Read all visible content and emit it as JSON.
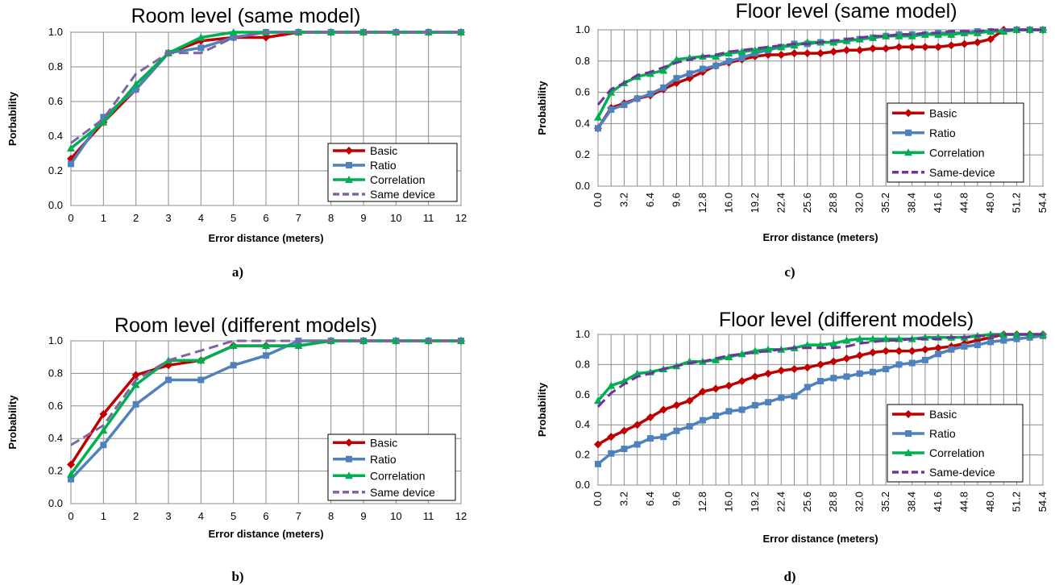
{
  "chart_data": [
    {
      "type": "line",
      "title": "Room level (same model)",
      "caption": "a)",
      "xlabel": "Error distance (meters)",
      "ylabel": "Porbability",
      "x": [
        0,
        1,
        2,
        3,
        4,
        5,
        6,
        7,
        8,
        9,
        10,
        11,
        12
      ],
      "xtick_labels": [
        "0",
        "1",
        "2",
        "3",
        "4",
        "5",
        "6",
        "7",
        "8",
        "9",
        "10",
        "11",
        "12"
      ],
      "xlim": [
        0,
        12
      ],
      "ylim": [
        0,
        1
      ],
      "yticks": [
        "0.0",
        "0.2",
        "0.4",
        "0.6",
        "0.8",
        "1.0"
      ],
      "x_tick_rotation": "horizontal",
      "grid": true,
      "legend_position": "bottom-right",
      "series": [
        {
          "name": "Basic",
          "color": "#c00000",
          "marker": "diamond",
          "dashed": false,
          "values": [
            0.27,
            0.48,
            0.67,
            0.88,
            0.95,
            0.97,
            0.97,
            1.0,
            1.0,
            1.0,
            1.0,
            1.0,
            1.0
          ]
        },
        {
          "name": "Ratio",
          "color": "#4f81bd",
          "marker": "square",
          "dashed": false,
          "values": [
            0.24,
            0.51,
            0.67,
            0.88,
            0.91,
            0.97,
            1.0,
            1.0,
            1.0,
            1.0,
            1.0,
            1.0,
            1.0
          ]
        },
        {
          "name": "Correlation",
          "color": "#00b050",
          "marker": "triangle",
          "dashed": false,
          "values": [
            0.33,
            0.48,
            0.7,
            0.88,
            0.97,
            1.0,
            1.0,
            1.0,
            1.0,
            1.0,
            1.0,
            1.0,
            1.0
          ]
        },
        {
          "name": "Same device",
          "color": "#8064a2",
          "marker": "none",
          "dashed": true,
          "values": [
            0.36,
            0.5,
            0.76,
            0.88,
            0.88,
            0.97,
            1.0,
            1.0,
            1.0,
            1.0,
            1.0,
            1.0,
            1.0
          ]
        }
      ]
    },
    {
      "type": "line",
      "title": "Room level (different models)",
      "caption": "b)",
      "xlabel": "Error distance (meters)",
      "ylabel": "Probability",
      "x": [
        0,
        1,
        2,
        3,
        4,
        5,
        6,
        7,
        8,
        9,
        10,
        11,
        12
      ],
      "xtick_labels": [
        "0",
        "1",
        "2",
        "3",
        "4",
        "5",
        "6",
        "7",
        "8",
        "9",
        "10",
        "11",
        "12"
      ],
      "xlim": [
        0,
        12
      ],
      "ylim": [
        0,
        1
      ],
      "yticks": [
        "0.0",
        "0.2",
        "0.4",
        "0.6",
        "0.8",
        "1.0"
      ],
      "x_tick_rotation": "horizontal",
      "grid": true,
      "legend_position": "bottom-right",
      "series": [
        {
          "name": "Basic",
          "color": "#c00000",
          "marker": "diamond",
          "dashed": false,
          "values": [
            0.24,
            0.55,
            0.79,
            0.85,
            0.88,
            0.97,
            0.97,
            0.97,
            1.0,
            1.0,
            1.0,
            1.0,
            1.0
          ]
        },
        {
          "name": "Ratio",
          "color": "#4f81bd",
          "marker": "square",
          "dashed": false,
          "values": [
            0.15,
            0.36,
            0.61,
            0.76,
            0.76,
            0.85,
            0.91,
            1.0,
            1.0,
            1.0,
            1.0,
            1.0,
            1.0
          ]
        },
        {
          "name": "Correlation",
          "color": "#00b050",
          "marker": "triangle",
          "dashed": false,
          "values": [
            0.18,
            0.45,
            0.73,
            0.88,
            0.88,
            0.97,
            0.97,
            0.97,
            1.0,
            1.0,
            1.0,
            1.0,
            1.0
          ]
        },
        {
          "name": "Same device",
          "color": "#8064a2",
          "marker": "none",
          "dashed": true,
          "values": [
            0.36,
            0.48,
            0.76,
            0.88,
            0.94,
            1.0,
            1.0,
            1.0,
            1.0,
            1.0,
            1.0,
            1.0,
            1.0
          ]
        }
      ]
    },
    {
      "type": "line",
      "title": "Floor level (same model)",
      "caption": "c)",
      "xlabel": "Error distance (meters)",
      "ylabel": "Probability",
      "x": [
        0,
        1.6,
        3.2,
        4.8,
        6.4,
        8,
        9.6,
        11.2,
        12.8,
        14.4,
        16,
        17.6,
        19.2,
        20.8,
        22.4,
        24,
        25.6,
        27.2,
        28.8,
        30.4,
        32,
        33.6,
        35.2,
        36.8,
        38.4,
        40,
        41.6,
        43.2,
        44.8,
        46.4,
        48,
        49.6,
        51.2,
        52.8,
        54.4
      ],
      "xtick_labels": [
        "0.0",
        "3.2",
        "6.4",
        "9.6",
        "12.8",
        "16.0",
        "19.2",
        "22.4",
        "25.6",
        "28.8",
        "32.0",
        "35.2",
        "38.4",
        "41.6",
        "44.8",
        "48.0",
        "51.2",
        "54.4"
      ],
      "xlim": [
        0,
        54.4
      ],
      "ylim": [
        0,
        1
      ],
      "yticks": [
        "0.0",
        "0.2",
        "0.4",
        "0.6",
        "0.8",
        "1.0"
      ],
      "x_tick_rotation": "vertical",
      "grid": true,
      "legend_position": "bottom-right",
      "series": [
        {
          "name": "Basic",
          "color": "#c00000",
          "marker": "diamond",
          "dashed": false,
          "values": [
            0.37,
            0.5,
            0.53,
            0.56,
            0.58,
            0.62,
            0.66,
            0.69,
            0.73,
            0.77,
            0.79,
            0.81,
            0.83,
            0.84,
            0.84,
            0.85,
            0.85,
            0.85,
            0.86,
            0.87,
            0.87,
            0.88,
            0.88,
            0.89,
            0.89,
            0.89,
            0.89,
            0.9,
            0.91,
            0.92,
            0.94,
            1.0,
            1.0,
            1.0,
            1.0
          ]
        },
        {
          "name": "Ratio",
          "color": "#4f81bd",
          "marker": "square",
          "dashed": false,
          "values": [
            0.37,
            0.49,
            0.52,
            0.56,
            0.59,
            0.63,
            0.69,
            0.72,
            0.75,
            0.77,
            0.8,
            0.82,
            0.85,
            0.87,
            0.89,
            0.91,
            0.91,
            0.92,
            0.92,
            0.93,
            0.94,
            0.95,
            0.96,
            0.97,
            0.97,
            0.97,
            0.98,
            0.98,
            0.98,
            0.99,
            0.99,
            0.99,
            1.0,
            1.0,
            1.0
          ]
        },
        {
          "name": "Correlation",
          "color": "#00b050",
          "marker": "triangle",
          "dashed": false,
          "values": [
            0.44,
            0.6,
            0.66,
            0.7,
            0.72,
            0.74,
            0.81,
            0.82,
            0.83,
            0.83,
            0.85,
            0.86,
            0.87,
            0.88,
            0.89,
            0.9,
            0.92,
            0.92,
            0.92,
            0.93,
            0.94,
            0.95,
            0.96,
            0.96,
            0.96,
            0.97,
            0.97,
            0.97,
            0.98,
            0.98,
            0.99,
            0.99,
            1.0,
            1.0,
            1.0
          ]
        },
        {
          "name": "Same-device",
          "color": "#7030a0",
          "marker": "none",
          "dashed": true,
          "values": [
            0.52,
            0.62,
            0.66,
            0.71,
            0.73,
            0.76,
            0.79,
            0.81,
            0.83,
            0.84,
            0.86,
            0.87,
            0.88,
            0.89,
            0.9,
            0.91,
            0.91,
            0.92,
            0.93,
            0.94,
            0.95,
            0.96,
            0.96,
            0.97,
            0.97,
            0.98,
            0.98,
            0.99,
            0.99,
            0.99,
            1.0,
            1.0,
            1.0,
            1.0,
            1.0
          ]
        }
      ]
    },
    {
      "type": "line",
      "title": "Floor level (different models)",
      "caption": "d)",
      "xlabel": "Error distance (meters)",
      "ylabel": "Probability",
      "x": [
        0,
        1.6,
        3.2,
        4.8,
        6.4,
        8,
        9.6,
        11.2,
        12.8,
        14.4,
        16,
        17.6,
        19.2,
        20.8,
        22.4,
        24,
        25.6,
        27.2,
        28.8,
        30.4,
        32,
        33.6,
        35.2,
        36.8,
        38.4,
        40,
        41.6,
        43.2,
        44.8,
        46.4,
        48,
        49.6,
        51.2,
        52.8,
        54.4
      ],
      "xtick_labels": [
        "0.0",
        "3.2",
        "6.4",
        "9.6",
        "12.8",
        "16.0",
        "19.2",
        "22.4",
        "25.6",
        "28.8",
        "32.0",
        "35.2",
        "38.4",
        "41.6",
        "44.8",
        "48.0",
        "51.2",
        "54.4"
      ],
      "xlim": [
        0,
        54.4
      ],
      "ylim": [
        0,
        1
      ],
      "yticks": [
        "0.0",
        "0.2",
        "0.4",
        "0.6",
        "0.8",
        "1.0"
      ],
      "x_tick_rotation": "vertical",
      "grid": true,
      "legend_position": "bottom-right",
      "series": [
        {
          "name": "Basic",
          "color": "#c00000",
          "marker": "diamond",
          "dashed": false,
          "values": [
            0.27,
            0.32,
            0.36,
            0.4,
            0.45,
            0.5,
            0.53,
            0.56,
            0.62,
            0.64,
            0.66,
            0.69,
            0.72,
            0.74,
            0.76,
            0.77,
            0.78,
            0.8,
            0.82,
            0.84,
            0.86,
            0.88,
            0.89,
            0.89,
            0.89,
            0.9,
            0.91,
            0.92,
            0.94,
            0.96,
            0.98,
            1.0,
            1.0,
            1.0,
            1.0
          ]
        },
        {
          "name": "Ratio",
          "color": "#4f81bd",
          "marker": "square",
          "dashed": false,
          "values": [
            0.14,
            0.21,
            0.24,
            0.27,
            0.31,
            0.32,
            0.36,
            0.39,
            0.43,
            0.46,
            0.49,
            0.5,
            0.53,
            0.55,
            0.58,
            0.59,
            0.65,
            0.69,
            0.71,
            0.72,
            0.74,
            0.75,
            0.77,
            0.8,
            0.81,
            0.83,
            0.87,
            0.9,
            0.92,
            0.93,
            0.95,
            0.96,
            0.97,
            0.98,
            0.99
          ]
        },
        {
          "name": "Correlation",
          "color": "#00b050",
          "marker": "triangle",
          "dashed": false,
          "values": [
            0.56,
            0.66,
            0.69,
            0.74,
            0.75,
            0.77,
            0.79,
            0.82,
            0.82,
            0.83,
            0.85,
            0.87,
            0.89,
            0.9,
            0.9,
            0.91,
            0.93,
            0.93,
            0.94,
            0.96,
            0.97,
            0.97,
            0.97,
            0.97,
            0.97,
            0.98,
            0.98,
            0.98,
            0.98,
            0.99,
            1.0,
            1.0,
            1.0,
            1.0,
            1.0
          ]
        },
        {
          "name": "Same-device",
          "color": "#7030a0",
          "marker": "none",
          "dashed": true,
          "values": [
            0.52,
            0.61,
            0.67,
            0.72,
            0.74,
            0.77,
            0.79,
            0.81,
            0.82,
            0.84,
            0.86,
            0.87,
            0.88,
            0.89,
            0.9,
            0.91,
            0.91,
            0.91,
            0.91,
            0.92,
            0.94,
            0.95,
            0.96,
            0.96,
            0.97,
            0.97,
            0.97,
            0.98,
            0.98,
            0.99,
            0.99,
            1.0,
            1.0,
            1.0,
            1.0
          ]
        }
      ]
    }
  ]
}
